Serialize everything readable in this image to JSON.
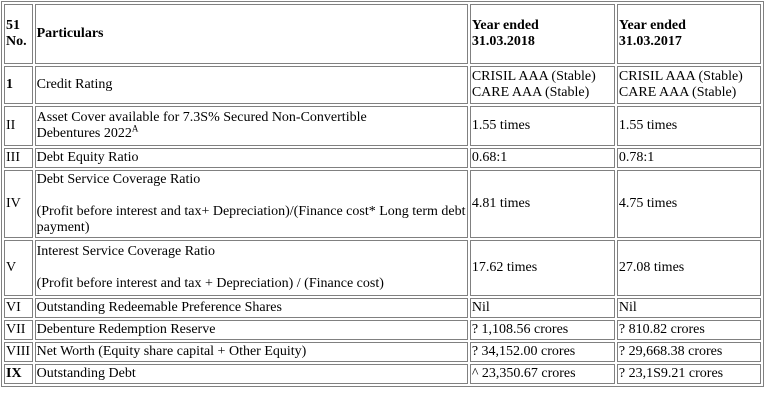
{
  "header": {
    "no_line1": "51",
    "no_line2": "No.",
    "particulars": "Particulars",
    "year1_line1": "Year ended",
    "year1_line2": "31.03.2018",
    "year2_line1": "Year ended",
    "year2_line2": "31.03.2017"
  },
  "rows": [
    {
      "no": "1",
      "particulars": "Credit Rating",
      "y2018_line1": "CRISIL AAA (Stable)",
      "y2018_line2": "CARE AAA (Stable)",
      "y2017_line1": "CRISIL AAA (Stable)",
      "y2017_line2": "CARE AAA (Stable)"
    },
    {
      "no": "II",
      "particulars_line1": "Asset Cover available for 7.3S% Secured Non-Convertible",
      "particulars_line2": "Debentures 2022",
      "superscript": "A",
      "y2018": "1.55 times",
      "y2017": "1.55 times"
    },
    {
      "no": "III",
      "particulars": "Debt Equity Ratio",
      "y2018": "0.68:1",
      "y2017": "0.78:1"
    },
    {
      "no": "IV",
      "particulars_line1": "Debt Service Coverage Ratio",
      "particulars_line2": "(Profit before interest and tax+ Depreciation)/(Finance cost* Long term debt payment)",
      "y2018": "4.81 times",
      "y2017": "4.75 times"
    },
    {
      "no": "V",
      "particulars_line1": "Interest Service Coverage Ratio",
      "particulars_line2": "(Profit before interest and tax + Depreciation) / (Finance cost)",
      "y2018": "17.62 times",
      "y2017": "27.08 times"
    },
    {
      "no": "VI",
      "particulars": "Outstanding Redeemable Preference Shares",
      "y2018": "Nil",
      "y2017": "Nil"
    },
    {
      "no": "VII",
      "particulars": "Debenture Redemption Reserve",
      "y2018": "? 1,108.56 crores",
      "y2017": "? 810.82 crores"
    },
    {
      "no": "VIII",
      "particulars": "Net Worth (Equity share capital + Other Equity)",
      "y2018": "? 34,152.00 crores",
      "y2017": "? 29,668.38 crores"
    },
    {
      "no": "IX",
      "particulars": "Outstanding Debt",
      "y2018": "^ 23,350.67 crores",
      "y2017": "? 23,1S9.21 crores"
    }
  ]
}
